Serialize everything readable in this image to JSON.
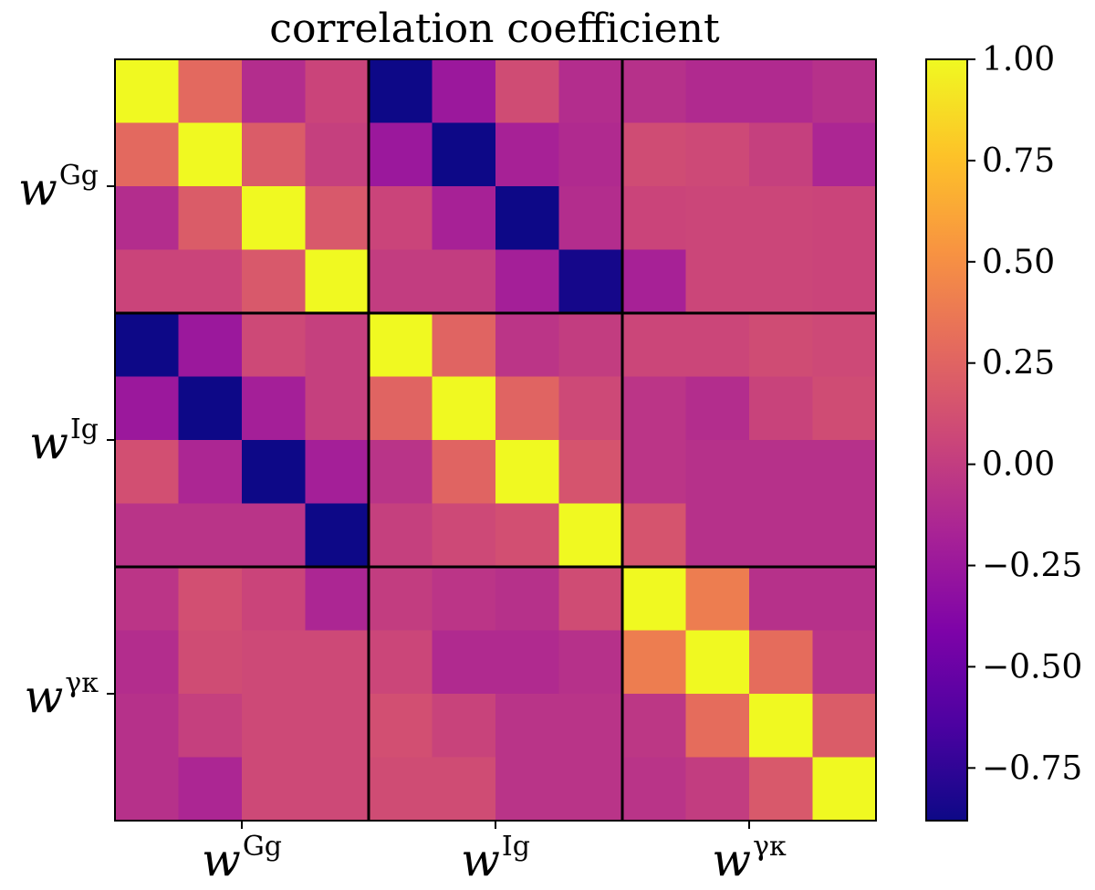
{
  "chart_data": {
    "type": "heatmap",
    "title": "correlation coefficient",
    "colormap": "plasma",
    "colorbar": {
      "range": [
        -0.88,
        1.0
      ],
      "ticks": [
        1.0,
        0.75,
        0.5,
        0.25,
        0.0,
        -0.25,
        -0.5,
        -0.75
      ],
      "tick_labels": [
        "1.00",
        "0.75",
        "0.50",
        "0.25",
        "0.00",
        "−0.25",
        "−0.50",
        "−0.75"
      ]
    },
    "blocks": [
      {
        "main": "w",
        "sup": "Gg"
      },
      {
        "main": "w",
        "sup": "Ig"
      },
      {
        "main": "w",
        "sup": "γκ"
      }
    ],
    "block_size": 4,
    "matrix": [
      [
        1.0,
        0.28,
        -0.1,
        0.05,
        -0.88,
        -0.25,
        0.1,
        -0.1,
        -0.08,
        -0.12,
        -0.12,
        -0.08
      ],
      [
        0.28,
        1.0,
        0.2,
        0.02,
        -0.25,
        -0.88,
        -0.18,
        -0.12,
        0.1,
        0.08,
        0.02,
        -0.15
      ],
      [
        -0.1,
        0.2,
        1.0,
        0.18,
        0.05,
        -0.18,
        -0.88,
        -0.1,
        0.05,
        0.06,
        0.06,
        0.05
      ],
      [
        0.05,
        0.05,
        0.18,
        1.0,
        0.0,
        0.0,
        -0.2,
        -0.85,
        -0.18,
        0.06,
        0.06,
        0.05
      ],
      [
        -0.88,
        -0.25,
        0.08,
        0.02,
        1.0,
        0.25,
        -0.05,
        0.0,
        0.06,
        0.06,
        0.1,
        0.08
      ],
      [
        -0.25,
        -0.88,
        -0.2,
        0.02,
        0.25,
        1.0,
        0.25,
        0.08,
        -0.05,
        -0.1,
        0.04,
        0.1
      ],
      [
        0.12,
        -0.15,
        -0.88,
        -0.2,
        -0.06,
        0.25,
        1.0,
        0.15,
        -0.05,
        -0.08,
        -0.08,
        -0.08
      ],
      [
        -0.06,
        -0.06,
        -0.06,
        -0.88,
        0.02,
        0.08,
        0.12,
        1.0,
        0.15,
        -0.08,
        -0.08,
        -0.08
      ],
      [
        -0.05,
        0.12,
        0.05,
        -0.15,
        0.0,
        -0.05,
        -0.08,
        0.1,
        1.0,
        0.4,
        -0.08,
        -0.08
      ],
      [
        -0.1,
        0.1,
        0.08,
        0.08,
        0.06,
        -0.12,
        -0.12,
        -0.08,
        0.4,
        1.0,
        0.3,
        -0.05
      ],
      [
        -0.08,
        0.02,
        0.08,
        0.08,
        0.12,
        0.04,
        -0.06,
        -0.06,
        -0.04,
        0.3,
        1.0,
        0.2
      ],
      [
        -0.08,
        -0.15,
        0.08,
        0.08,
        0.1,
        0.1,
        -0.06,
        -0.06,
        -0.06,
        0.0,
        0.18,
        1.0
      ]
    ]
  }
}
